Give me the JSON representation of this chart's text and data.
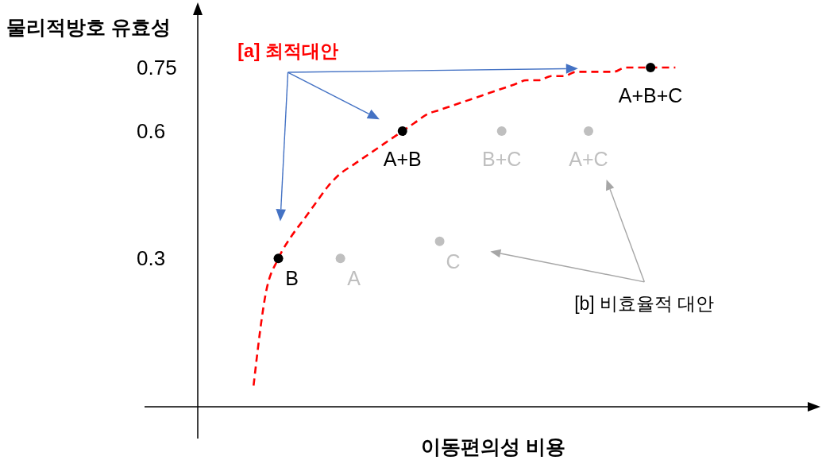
{
  "chart_data": {
    "type": "scatter",
    "xlabel": "이동편의성 비용",
    "ylabel": "물리적방호 유효성",
    "categories": [
      null,
      null,
      null,
      null,
      null,
      null,
      null,
      null,
      null,
      null,
      null,
      null,
      null,
      null,
      null,
      null,
      null,
      null,
      null,
      null,
      null,
      null,
      null,
      null,
      null,
      null,
      null,
      null,
      null,
      null,
      null,
      null,
      null,
      null,
      null,
      null,
      null,
      null,
      null,
      null,
      null,
      null,
      null,
      null,
      null,
      null,
      null,
      null,
      null,
      null
    ],
    "ylim": [
      -0.05,
      0.9
    ],
    "yticks": [
      0.3,
      0.6,
      0.75
    ],
    "tick_labels": "y",
    "marker": "circle",
    "series": [
      {
        "type": "line",
        "color": "#ff0000",
        "line_style": "dashed",
        "marker": "none",
        "values": [
          null,
          null,
          null,
          null,
          0,
          0.22,
          0.3,
          0.35,
          0.39,
          0.43,
          0.47,
          0.5,
          0.52,
          0.54,
          0.56,
          0.58,
          0.6,
          0.62,
          0.64,
          0.65,
          0.66,
          0.67,
          0.68,
          0.69,
          0.7,
          0.71,
          0.72,
          0.72,
          0.73,
          0.73,
          0.74,
          0.74,
          0.74,
          0.74,
          0.75,
          0.75,
          0.75,
          0.75,
          0.75,
          null,
          null,
          null,
          null,
          null,
          null,
          null,
          null,
          null,
          null,
          null
        ]
      },
      {
        "color": "#000000",
        "values": [
          null,
          null,
          null,
          null,
          null,
          null,
          0.3,
          null,
          null,
          null,
          null,
          null,
          null,
          null,
          null,
          null,
          0.6,
          null,
          null,
          null,
          null,
          null,
          null,
          null,
          null,
          null,
          null,
          null,
          null,
          null,
          null,
          null,
          null,
          null,
          null,
          null,
          0.75,
          null,
          null,
          null,
          null,
          null,
          null,
          null,
          null,
          null,
          null,
          null,
          null,
          null
        ],
        "value_labels": [
          null,
          null,
          null,
          null,
          null,
          null,
          "B",
          null,
          null,
          null,
          null,
          null,
          null,
          null,
          null,
          null,
          "A+B",
          null,
          null,
          null,
          null,
          null,
          null,
          null,
          null,
          null,
          null,
          null,
          null,
          null,
          null,
          null,
          null,
          null,
          null,
          null,
          "A+B+C",
          null,
          null,
          null,
          null,
          null,
          null,
          null,
          null,
          null,
          null,
          null,
          null,
          null
        ]
      },
      {
        "color": "#bfbfbf",
        "values": [
          null,
          null,
          null,
          null,
          null,
          null,
          null,
          null,
          null,
          null,
          null,
          0.3,
          null,
          null,
          null,
          null,
          null,
          null,
          null,
          0.34,
          null,
          null,
          null,
          null,
          0.6,
          null,
          null,
          null,
          null,
          null,
          null,
          0.6,
          null,
          null,
          null,
          null,
          null,
          null,
          null,
          null,
          null,
          null,
          null,
          null,
          null,
          null,
          null,
          null,
          null,
          null
        ],
        "value_labels": [
          null,
          null,
          null,
          null,
          null,
          null,
          null,
          null,
          null,
          null,
          null,
          "A",
          null,
          null,
          null,
          null,
          null,
          null,
          null,
          "C",
          null,
          null,
          null,
          null,
          "B+C",
          null,
          null,
          null,
          null,
          null,
          null,
          "A+C",
          null,
          null,
          null,
          null,
          null,
          null,
          null,
          null,
          null,
          null,
          null,
          null,
          null,
          null,
          null,
          null,
          null,
          null
        ]
      }
    ],
    "annotations": [
      "[a] 최적대안",
      "[b] 비효율적 대안"
    ]
  }
}
